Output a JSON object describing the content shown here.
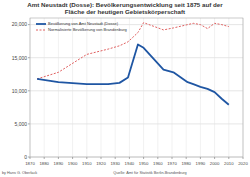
{
  "chart_data": {
    "type": "line",
    "title": "Amt Neustadt (Dosse): Bevölkerungsentwicklung seit 1875 auf der Fläche der heutigen Gebietskörperschaft",
    "x": [
      1875,
      1890,
      1910,
      1925,
      1933,
      1939,
      1946,
      1950,
      1964,
      1971,
      1981,
      1985,
      1990,
      1995,
      2000,
      2005,
      2010
    ],
    "series": [
      {
        "name": "Bevölkerung von Amt Neustadt (Dosse)",
        "color": "#1f56a3",
        "line_style": "solid",
        "values": [
          11800,
          11300,
          11000,
          11000,
          11200,
          12000,
          17000,
          16500,
          13200,
          12800,
          11300,
          11000,
          10600,
          10300,
          9800,
          8800,
          7900
        ]
      },
      {
        "name": "Normalisierte Bevölkerung von Brandenburg",
        "color": "#e06060",
        "line_style": "dashed",
        "values": [
          11800,
          12800,
          15500,
          16300,
          16800,
          17400,
          18800,
          20300,
          19200,
          19500,
          20000,
          20200,
          20000,
          19400,
          20200,
          20000,
          19700
        ]
      }
    ],
    "xlim": [
      1870,
      2020
    ],
    "xticks": [
      1870,
      1880,
      1890,
      1900,
      1910,
      1920,
      1930,
      1940,
      1950,
      1960,
      1970,
      1980,
      1990,
      2000,
      2010,
      2020
    ],
    "ylim": [
      0,
      21000
    ],
    "yticks": [
      0,
      {
        "value": 5000,
        "label": "5,000"
      },
      {
        "value": 10000,
        "label": "10,000"
      },
      {
        "value": 15000,
        "label": "15,000"
      },
      {
        "value": 20000,
        "label": "20,000"
      }
    ],
    "grid": true,
    "legend": "upper left",
    "annotations": [
      "by Hans G. Oberlack",
      "Quelle: Amt für Statistik Berlin-Brandenburg"
    ]
  }
}
